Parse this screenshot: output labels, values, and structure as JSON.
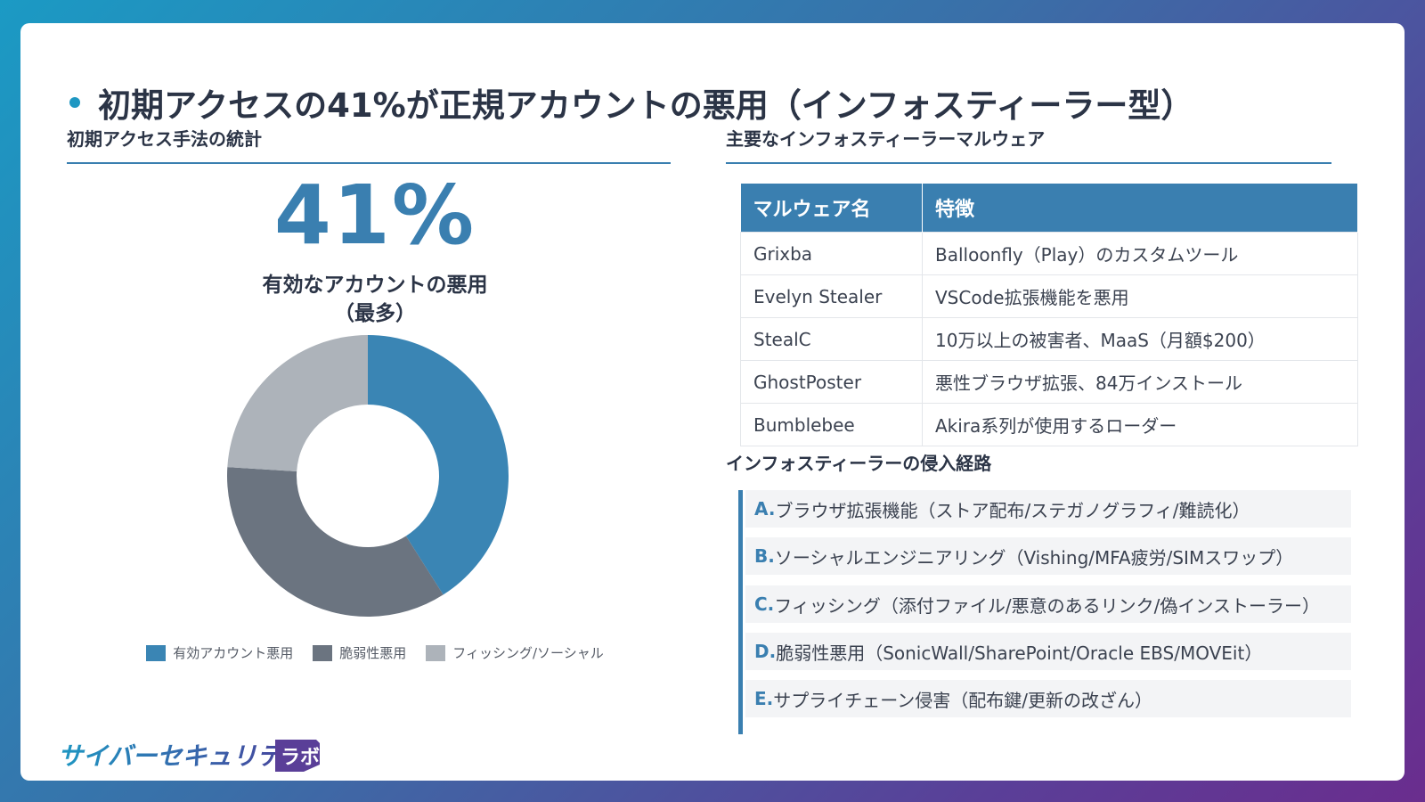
{
  "title": "初期アクセスの41%が正規アカウントの悪用（インフォスティーラー型）",
  "left": {
    "heading": "初期アクセス手法の統計",
    "big_stat": "41%",
    "stat_label_line1": "有効なアカウントの悪用",
    "stat_label_line2": "（最多）"
  },
  "chart_data": {
    "type": "pie",
    "donut": true,
    "categories": [
      "有効アカウント悪用",
      "脆弱性悪用",
      "フィッシング/ソーシャル"
    ],
    "values": [
      41,
      35,
      24
    ],
    "colors": [
      "#3a85b4",
      "#6b7480",
      "#adb3ba"
    ],
    "legend_position": "bottom"
  },
  "right": {
    "table_heading": "主要なインフォスティーラーマルウェア",
    "table": {
      "headers": [
        "マルウェア名",
        "特徴"
      ],
      "rows": [
        [
          "Grixba",
          "Balloonfly（Play）のカスタムツール"
        ],
        [
          "Evelyn Stealer",
          "VSCode拡張機能を悪用"
        ],
        [
          "StealC",
          "10万以上の被害者、MaaS（月額$200）"
        ],
        [
          "GhostPoster",
          "悪性ブラウザ拡張、84万インストール"
        ],
        [
          "Bumblebee",
          "Akira系列が使用するローダー"
        ]
      ]
    },
    "routes_heading": "インフォスティーラーの侵入経路",
    "routes": [
      {
        "letter": "A.",
        "text": "ブラウザ拡張機能（ストア配布/ステガノグラフィ/難読化）"
      },
      {
        "letter": "B.",
        "text": "ソーシャルエンジニアリング（Vishing/MFA疲労/SIMスワップ）"
      },
      {
        "letter": "C.",
        "text": "フィッシング（添付ファイル/悪意のあるリンク/偽インストーラー）"
      },
      {
        "letter": "D.",
        "text": "脆弱性悪用（SonicWall/SharePoint/Oracle EBS/MOVEit）"
      },
      {
        "letter": "E.",
        "text": "サプライチェーン侵害（配布鍵/更新の改ざん）"
      }
    ]
  },
  "logo": {
    "text": "サイバーセキュリティ",
    "badge": "ラボ",
    "colors": [
      "#1e97c2",
      "#6a2d8e"
    ]
  }
}
